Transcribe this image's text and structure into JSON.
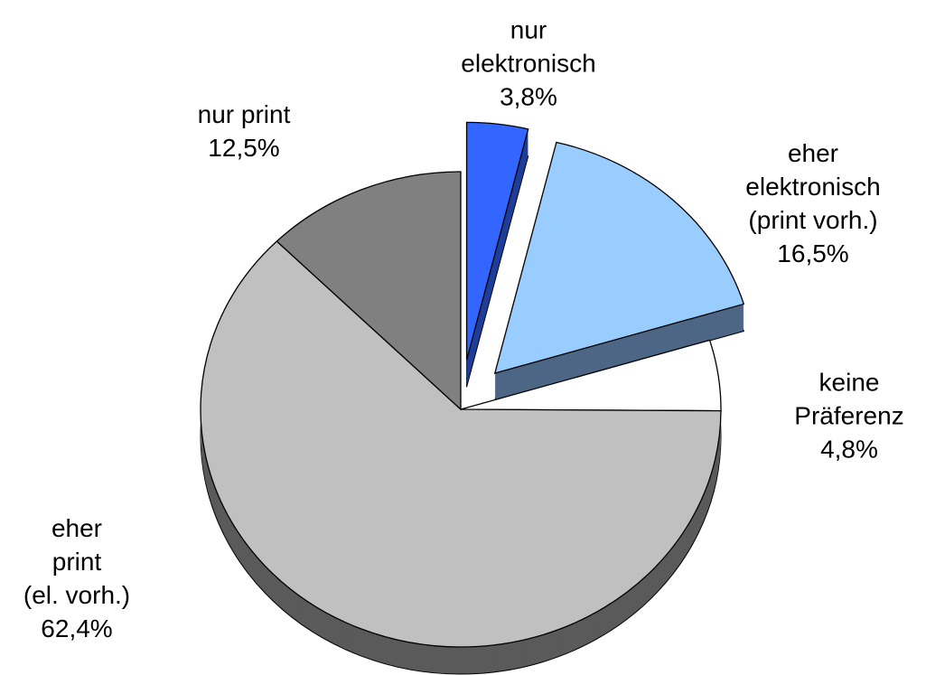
{
  "chart_data": {
    "type": "pie",
    "categories": [
      "nur\nelektronisch",
      "eher\nelektronisch\n(print vorh.)",
      "keine\nPräferenz",
      "eher\nprint\n(el. vorh.)",
      "nur print"
    ],
    "values": [
      3.8,
      16.5,
      4.8,
      62.4,
      12.5
    ],
    "value_labels": [
      "3,8%",
      "16,5%",
      "4,8%",
      "62,4%",
      "12,5%"
    ],
    "colors": [
      "#3366ff",
      "#99ccff",
      "#ffffff",
      "#c0c0c0",
      "#808080"
    ],
    "side_colors": [
      "#1f3d99",
      "#4d6685",
      "#cccccc",
      "#5a5a5a",
      "#4d4d4d"
    ],
    "exploded": [
      true,
      true,
      false,
      false,
      false
    ]
  }
}
